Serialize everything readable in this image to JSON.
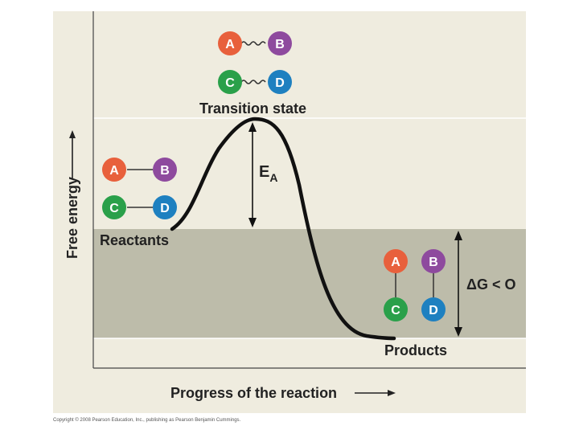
{
  "axes": {
    "y_label": "Free energy",
    "x_label": "Progress of the reaction"
  },
  "labels": {
    "transition_state": "Transition state",
    "reactants": "Reactants",
    "products": "Products",
    "activation_energy_main": "E",
    "activation_energy_sub": "A",
    "delta_g": "ΔG < O"
  },
  "molecules": {
    "transition": {
      "a": "A",
      "b": "B",
      "c": "C",
      "d": "D"
    },
    "reactants": {
      "a": "A",
      "b": "B",
      "c": "C",
      "d": "D"
    },
    "products": {
      "a": "A",
      "b": "B",
      "c": "C",
      "d": "D"
    }
  },
  "copyright": "Copyright © 2008 Pearson Education, Inc., publishing as Pearson Benjamin Cummings.",
  "colors": {
    "A": "#e8603c",
    "B": "#8e4a9e",
    "C": "#2aa04a",
    "D": "#1e80c0",
    "panel": "#efecdf",
    "band": "#bdbcaa",
    "curve": "#111111"
  }
}
